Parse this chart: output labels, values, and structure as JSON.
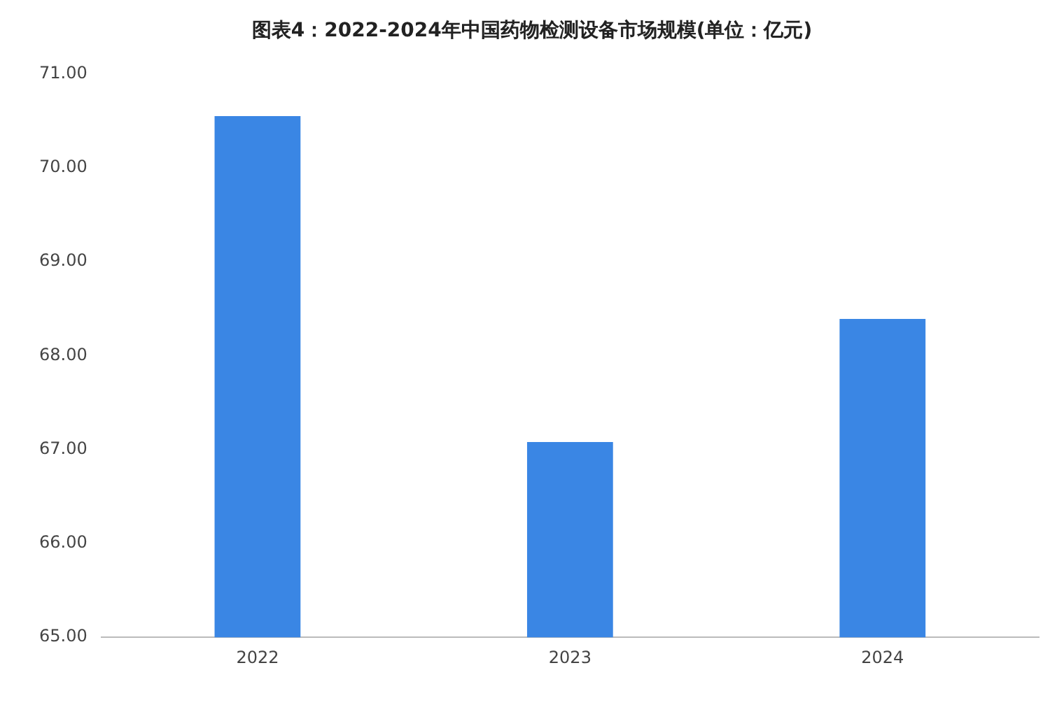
{
  "chart_data": {
    "type": "bar",
    "title": "图表4：2022-2024年中国药物检测设备市场规模(单位：亿元)",
    "categories": [
      "2022",
      "2023",
      "2024"
    ],
    "values": [
      70.55,
      67.08,
      68.39
    ],
    "color": "#3a86e4",
    "ylim": [
      65,
      71
    ],
    "yticks": [
      {
        "value": 65,
        "label": "65.00"
      },
      {
        "value": 66,
        "label": "66.00"
      },
      {
        "value": 67,
        "label": "67.00"
      },
      {
        "value": 68,
        "label": "68.00"
      },
      {
        "value": 69,
        "label": "69.00"
      },
      {
        "value": 70,
        "label": "70.00"
      },
      {
        "value": 71,
        "label": "71.00"
      }
    ],
    "grid": false,
    "legend": false
  }
}
